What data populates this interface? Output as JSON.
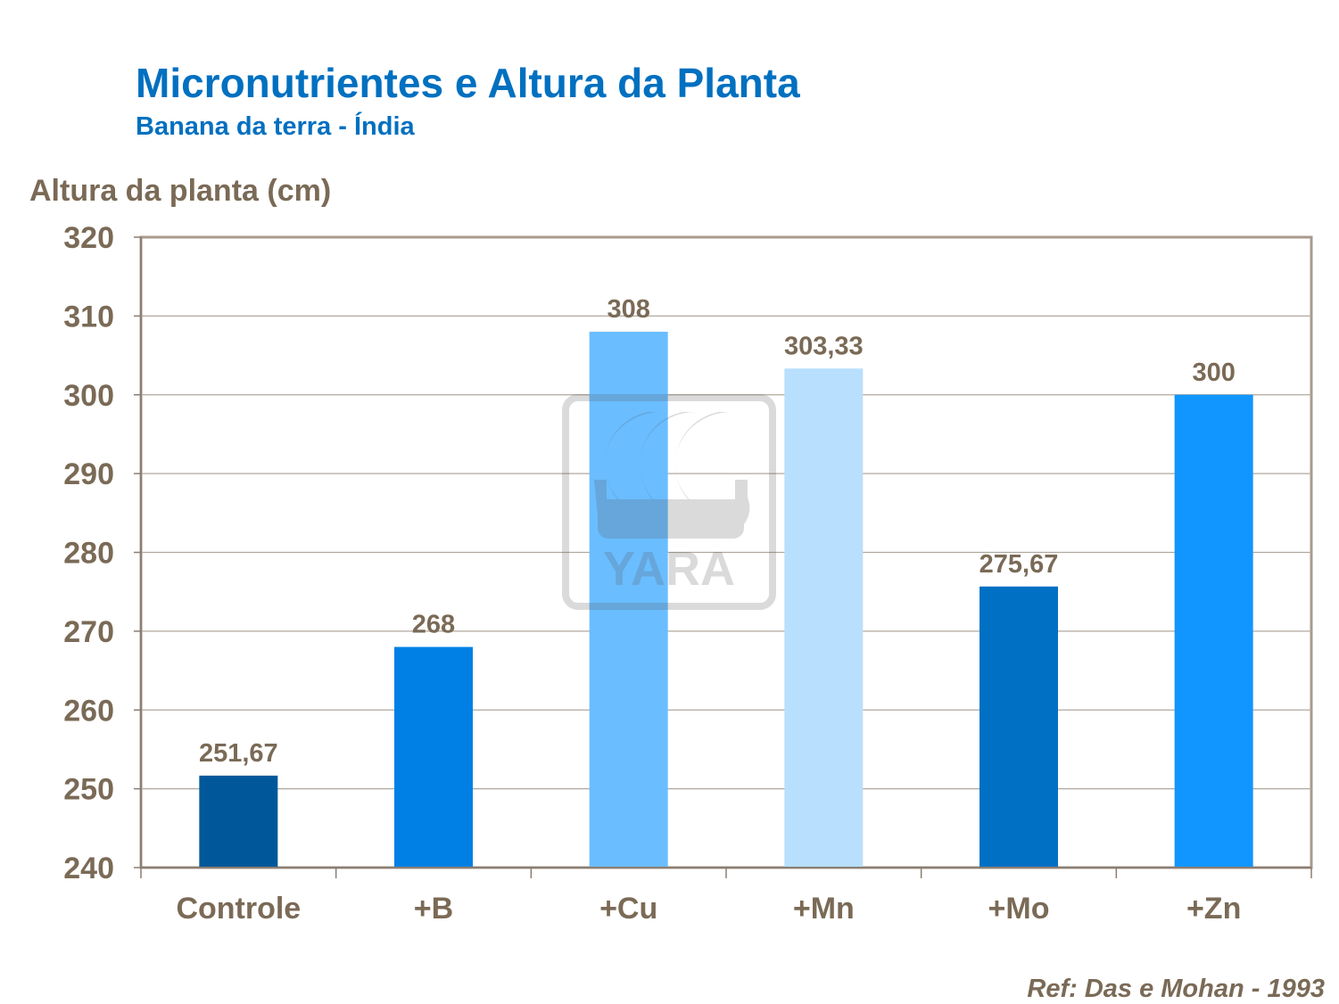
{
  "chart_data": {
    "type": "bar",
    "title": "Micronutrientes e Altura da Planta",
    "subtitle": "Banana da terra - Índia",
    "ylabel": "Altura da planta (cm)",
    "xlabel": "",
    "categories": [
      "Controle",
      "+B",
      "+Cu",
      "+Mn",
      "+Mo",
      "+Zn"
    ],
    "values": [
      251.67,
      268,
      308,
      303.33,
      275.67,
      300
    ],
    "data_labels": [
      "251,67",
      "268",
      "308",
      "303,33",
      "275,67",
      "300"
    ],
    "colors": [
      "#00589A",
      "#0080E4",
      "#6ABDFF",
      "#B8DFFD",
      "#0070C4",
      "#1196FF"
    ],
    "ylim": [
      240,
      320
    ],
    "yticks": [
      240,
      250,
      260,
      270,
      280,
      290,
      300,
      310,
      320
    ],
    "grid": true,
    "legend": "none"
  },
  "reference": "Ref: Das e Mohan - 1993",
  "watermark": "YARA"
}
